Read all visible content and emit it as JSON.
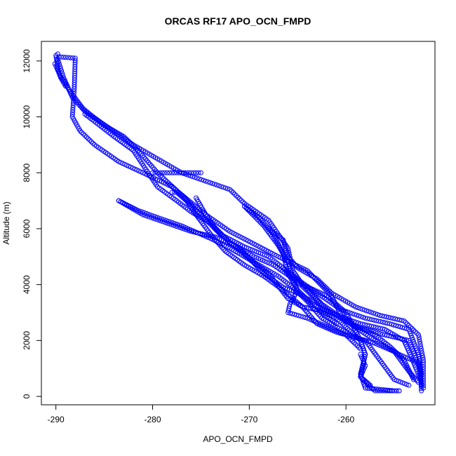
{
  "chart_data": {
    "type": "scatter",
    "title": "ORCAS RF17 APO_OCN_FMPD",
    "xlabel": "APO_OCN_FMPD",
    "ylabel": "Altitude (m)",
    "xlim": [
      -291.5,
      -250.8
    ],
    "ylim": [
      -300,
      12700
    ],
    "xticks": [
      -290,
      -280,
      -270,
      -260
    ],
    "yticks": [
      0,
      2000,
      4000,
      6000,
      8000,
      10000,
      12000
    ],
    "marker_color": "#0000ff",
    "marker": "open-circle",
    "grid": false,
    "tracks": [
      [
        [
          -289.8,
          12250
        ],
        [
          -289.7,
          12150
        ],
        [
          -288.0,
          12100
        ],
        [
          -288.1,
          11000
        ],
        [
          -288.3,
          10000
        ],
        [
          -287.5,
          9500
        ],
        [
          -286.0,
          9000
        ],
        [
          -283.5,
          8400
        ],
        [
          -281.0,
          8000
        ],
        [
          -278.0,
          7500
        ],
        [
          -274.5,
          6500
        ],
        [
          -272.0,
          5900
        ],
        [
          -269.5,
          5450
        ],
        [
          -267.0,
          5000
        ],
        [
          -264.0,
          4500
        ],
        [
          -261.5,
          3600
        ],
        [
          -260.5,
          2900
        ],
        [
          -259.0,
          2500
        ],
        [
          -256.0,
          2200
        ],
        [
          -253.5,
          2000
        ],
        [
          -252.3,
          1000
        ],
        [
          -252.2,
          200
        ]
      ],
      [
        [
          -290.1,
          11900
        ],
        [
          -289.6,
          11500
        ],
        [
          -288.5,
          10900
        ],
        [
          -287.2,
          10300
        ],
        [
          -286.5,
          10100
        ],
        [
          -285.0,
          9700
        ],
        [
          -283.0,
          9300
        ],
        [
          -281.5,
          8800
        ],
        [
          -279.5,
          8000
        ],
        [
          -277.0,
          7200
        ],
        [
          -275.0,
          6500
        ],
        [
          -273.0,
          5800
        ],
        [
          -270.5,
          5350
        ],
        [
          -268.0,
          5000
        ],
        [
          -265.0,
          4200
        ],
        [
          -262.5,
          3300
        ],
        [
          -260.0,
          2700
        ],
        [
          -257.0,
          2000
        ],
        [
          -254.5,
          1500
        ],
        [
          -252.5,
          1200
        ],
        [
          -252.2,
          400
        ]
      ],
      [
        [
          -289.8,
          12050
        ],
        [
          -289.2,
          11400
        ],
        [
          -288.3,
          10700
        ],
        [
          -287.0,
          10200
        ],
        [
          -284.5,
          9600
        ],
        [
          -282.0,
          9000
        ],
        [
          -279.5,
          8500
        ],
        [
          -277.0,
          8000
        ],
        [
          -274.5,
          7700
        ],
        [
          -272.0,
          7400
        ],
        [
          -270.5,
          6900
        ],
        [
          -268.0,
          6300
        ],
        [
          -266.0,
          5300
        ],
        [
          -265.5,
          4500
        ],
        [
          -264.5,
          4000
        ],
        [
          -262.0,
          3600
        ],
        [
          -260.0,
          3000
        ],
        [
          -258.5,
          2000
        ],
        [
          -258.0,
          1500
        ],
        [
          -258.5,
          800
        ],
        [
          -258.0,
          300
        ],
        [
          -255.0,
          200
        ],
        [
          -254.5,
          200
        ]
      ],
      [
        [
          -287.0,
          10100
        ],
        [
          -285.5,
          9700
        ],
        [
          -284.0,
          9300
        ],
        [
          -282.0,
          8800
        ],
        [
          -279.5,
          7500
        ],
        [
          -277.5,
          7000
        ],
        [
          -276.0,
          6600
        ],
        [
          -274.0,
          6200
        ],
        [
          -272.0,
          5500
        ],
        [
          -269.5,
          5000
        ],
        [
          -267.5,
          4700
        ],
        [
          -265.0,
          4100
        ],
        [
          -262.0,
          3100
        ],
        [
          -259.5,
          2600
        ],
        [
          -257.0,
          2200
        ],
        [
          -255.5,
          1800
        ],
        [
          -254.0,
          1300
        ],
        [
          -253.0,
          600
        ]
      ],
      [
        [
          -280.0,
          8000
        ],
        [
          -278.5,
          8000
        ],
        [
          -277.0,
          8000
        ],
        [
          -275.5,
          8000
        ],
        [
          -275.0,
          8000
        ]
      ],
      [
        [
          -283.5,
          7000
        ],
        [
          -281.5,
          6650
        ],
        [
          -279.5,
          6400
        ],
        [
          -277.0,
          6100
        ],
        [
          -274.0,
          5650
        ],
        [
          -272.0,
          5300
        ],
        [
          -270.0,
          4900
        ],
        [
          -268.0,
          4400
        ],
        [
          -266.0,
          3500
        ],
        [
          -264.5,
          3200
        ],
        [
          -263.0,
          3100
        ],
        [
          -261.0,
          2800
        ],
        [
          -258.5,
          2000
        ],
        [
          -258.0,
          1500
        ],
        [
          -258.5,
          700
        ],
        [
          -257.5,
          400
        ]
      ],
      [
        [
          -283.5,
          7000
        ],
        [
          -281.0,
          6500
        ],
        [
          -278.5,
          6200
        ],
        [
          -276.0,
          5900
        ],
        [
          -273.5,
          5700
        ],
        [
          -271.0,
          5300
        ],
        [
          -268.5,
          4400
        ],
        [
          -266.5,
          3900
        ],
        [
          -265.0,
          3700
        ],
        [
          -263.5,
          3400
        ],
        [
          -262.5,
          3000
        ],
        [
          -261.0,
          2600
        ]
      ],
      [
        [
          -278.0,
          7300
        ],
        [
          -277.5,
          7300
        ],
        [
          -276.5,
          7000
        ],
        [
          -275.5,
          6500
        ],
        [
          -274.0,
          5800
        ],
        [
          -272.5,
          5200
        ],
        [
          -270.5,
          4700
        ],
        [
          -268.5,
          4300
        ],
        [
          -266.5,
          3800
        ],
        [
          -264.5,
          3200
        ],
        [
          -263.0,
          2600
        ],
        [
          -261.0,
          2300
        ],
        [
          -258.0,
          2000
        ],
        [
          -256.5,
          1300
        ],
        [
          -255.0,
          600
        ],
        [
          -253.5,
          400
        ]
      ],
      [
        [
          -275.5,
          7100
        ],
        [
          -274.5,
          6500
        ],
        [
          -273.5,
          6000
        ],
        [
          -272.0,
          5500
        ],
        [
          -269.5,
          4800
        ],
        [
          -267.0,
          4300
        ],
        [
          -265.5,
          3900
        ],
        [
          -264.0,
          3400
        ],
        [
          -262.5,
          2800
        ],
        [
          -260.5,
          2400
        ],
        [
          -259.0,
          2100
        ],
        [
          -257.0,
          1900
        ],
        [
          -255.0,
          1600
        ],
        [
          -253.5,
          900
        ],
        [
          -252.5,
          500
        ]
      ],
      [
        [
          -270.5,
          6800
        ],
        [
          -268.5,
          6100
        ],
        [
          -267.0,
          5400
        ],
        [
          -266.0,
          4800
        ],
        [
          -265.5,
          4300
        ],
        [
          -263.0,
          3700
        ],
        [
          -260.5,
          3100
        ],
        [
          -258.0,
          2800
        ],
        [
          -255.5,
          2600
        ],
        [
          -253.5,
          2400
        ],
        [
          -252.5,
          1500
        ],
        [
          -252.2,
          800
        ]
      ],
      [
        [
          -270.5,
          6800
        ],
        [
          -269.0,
          6400
        ],
        [
          -267.5,
          5800
        ],
        [
          -266.5,
          5100
        ],
        [
          -266.0,
          4400
        ],
        [
          -265.0,
          3800
        ],
        [
          -263.5,
          3300
        ],
        [
          -261.0,
          2900
        ],
        [
          -258.5,
          2600
        ],
        [
          -256.0,
          2400
        ],
        [
          -254.0,
          2000
        ],
        [
          -253.0,
          1200
        ],
        [
          -252.3,
          600
        ]
      ],
      [
        [
          -268.0,
          6000
        ],
        [
          -266.5,
          5600
        ],
        [
          -266.0,
          5000
        ],
        [
          -265.0,
          4600
        ],
        [
          -263.0,
          4200
        ],
        [
          -261.5,
          3700
        ],
        [
          -259.0,
          3200
        ],
        [
          -256.5,
          2900
        ],
        [
          -254.0,
          2700
        ],
        [
          -252.5,
          2200
        ],
        [
          -252.0,
          1300
        ],
        [
          -252.0,
          300
        ]
      ],
      [
        [
          -266.5,
          4600
        ],
        [
          -265.5,
          4200
        ],
        [
          -265.0,
          3800
        ],
        [
          -265.8,
          3300
        ],
        [
          -266.0,
          3000
        ],
        [
          -264.0,
          2800
        ],
        [
          -262.0,
          2500
        ],
        [
          -260.0,
          2200
        ],
        [
          -258.5,
          1700
        ]
      ],
      [
        [
          -258.5,
          1500
        ],
        [
          -258.0,
          1100
        ],
        [
          -258.5,
          700
        ],
        [
          -257.5,
          350
        ],
        [
          -257.0,
          200
        ],
        [
          -256.0,
          200
        ],
        [
          -254.5,
          200
        ]
      ],
      [
        [
          -290.0,
          12200
        ],
        [
          -289.9,
          12000
        ],
        [
          -289.8,
          11700
        ],
        [
          -289.5,
          11400
        ],
        [
          -289.0,
          11100
        ]
      ]
    ]
  }
}
